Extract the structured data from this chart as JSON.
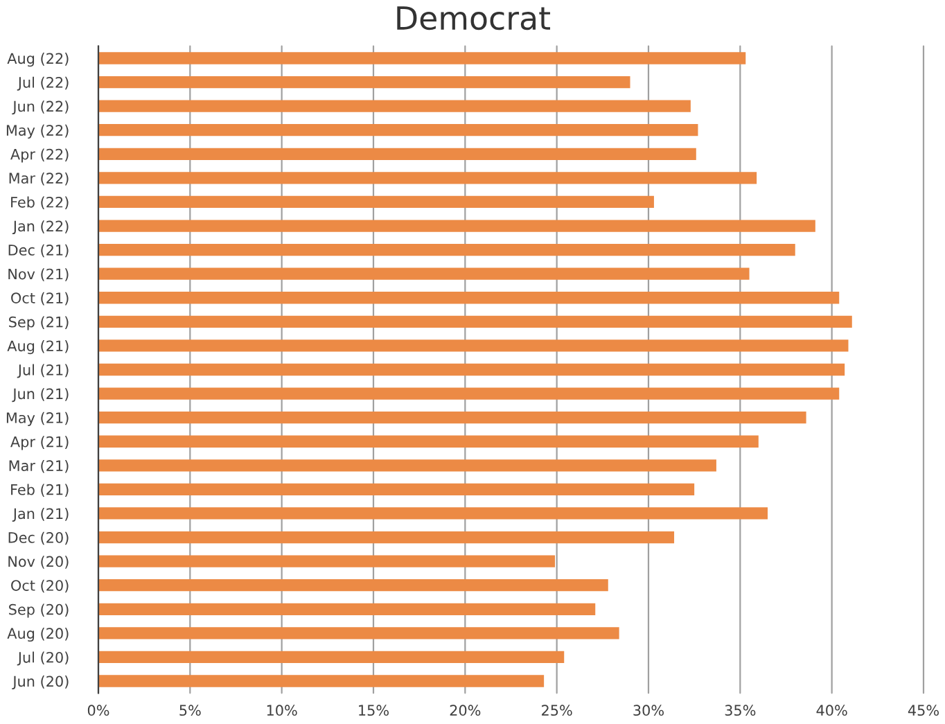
{
  "chart_data": {
    "type": "bar",
    "orientation": "horizontal",
    "title": "Democrat",
    "categories": [
      "Aug (22)",
      "Jul (22)",
      "Jun (22)",
      "May (22)",
      "Apr (22)",
      "Mar (22)",
      "Feb (22)",
      "Jan (22)",
      "Dec (21)",
      "Nov (21)",
      "Oct (21)",
      "Sep (21)",
      "Aug (21)",
      "Jul (21)",
      "Jun (21)",
      "May (21)",
      "Apr (21)",
      "Mar (21)",
      "Feb (21)",
      "Jan (21)",
      "Dec (20)",
      "Nov (20)",
      "Oct (20)",
      "Sep (20)",
      "Aug (20)",
      "Jul (20)",
      "Jun (20)"
    ],
    "values": [
      35.3,
      29.0,
      32.3,
      32.7,
      32.6,
      35.9,
      30.3,
      39.1,
      38.0,
      35.5,
      40.4,
      41.1,
      40.9,
      40.7,
      40.4,
      38.6,
      36.0,
      33.7,
      32.5,
      36.5,
      31.4,
      24.9,
      27.8,
      27.1,
      28.4,
      25.4,
      24.3
    ],
    "color": "#ec8a45",
    "xlim": [
      0,
      45
    ],
    "xticks": [
      {
        "value": 0,
        "label": "0%"
      },
      {
        "value": 5,
        "label": "5%"
      },
      {
        "value": 10,
        "label": "10%"
      },
      {
        "value": 15,
        "label": "15%"
      },
      {
        "value": 20,
        "label": "20%"
      },
      {
        "value": 25,
        "label": "25%"
      },
      {
        "value": 30,
        "label": "30%"
      },
      {
        "value": 35,
        "label": "35%"
      },
      {
        "value": 40,
        "label": "40%"
      },
      {
        "value": 45,
        "label": "45%"
      }
    ],
    "grid": "x"
  }
}
